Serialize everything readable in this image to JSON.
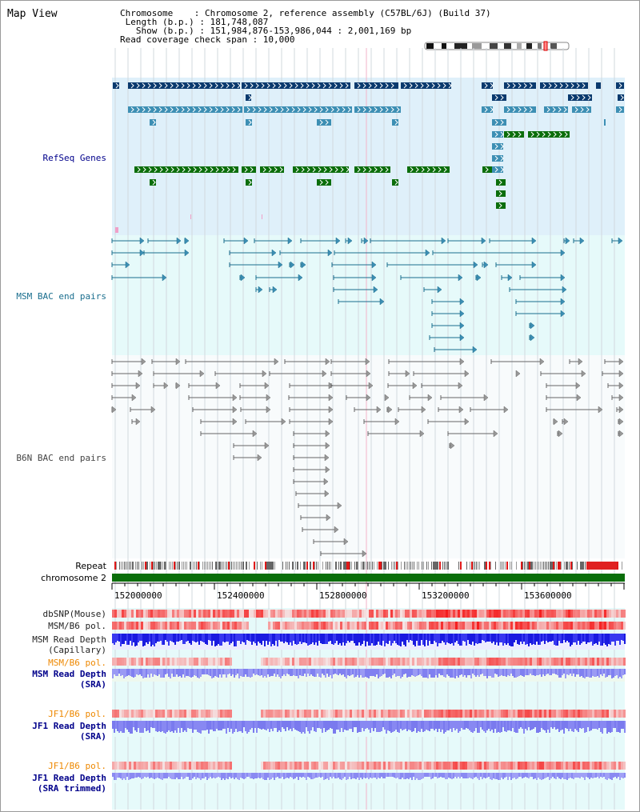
{
  "header": {
    "title": "Map View",
    "info_lines": [
      "Chromosome    : Chromosome 2, reference assembly (C57BL/6J) (Build 37)",
      " Length (b.p.) : 181,748,087",
      "   Show (b.p.) : 151,984,876-153,986,044 : 2,001,169 bp",
      "Read coverage check span : 10,000"
    ]
  },
  "tracks": {
    "refseq": "RefSeq Genes",
    "msm_bac": "MSM BAC end pairs",
    "b6n_bac": "B6N BAC end pairs",
    "repeat": "Repeat",
    "chromosome": "chromosome 2",
    "dbsnp": "dbSNP(Mouse)",
    "msm_pol": "MSM/B6 pol.",
    "msm_depth_cap_1": "MSM Read Depth",
    "msm_depth_cap_2": "(Capillary)",
    "msm_pol_2": "MSM/B6 pol.",
    "msm_depth_sra_1": "MSM Read Depth",
    "msm_depth_sra_2": "(SRA)",
    "jf1_pol": "JF1/B6 pol.",
    "jf1_depth_1": "JF1 Read Depth",
    "jf1_depth_2": "(SRA)",
    "jf1_pol_2": "JF1/B6 pol.",
    "jf1_trim_1": "JF1 Read Depth",
    "jf1_trim_2": "(SRA trimmed)"
  },
  "axis": {
    "ticks": [
      "152000000",
      "152400000",
      "152800000",
      "153200000",
      "153600000"
    ]
  },
  "colors": {
    "refseq_bg": "#dff0fa",
    "msm_bg": "#e6fafa",
    "depth_bg": "#e6fafa",
    "refseq_dark": "#0a3a6e",
    "refseq_mid": "#3d8fb4",
    "refseq_green": "#0b6e0b",
    "msm_line": "#1a6e8e",
    "b6n_line": "#666666",
    "chromosome": "#0a6e0a",
    "label_blue": "#00008b",
    "label_orange": "#ee8800"
  }
}
